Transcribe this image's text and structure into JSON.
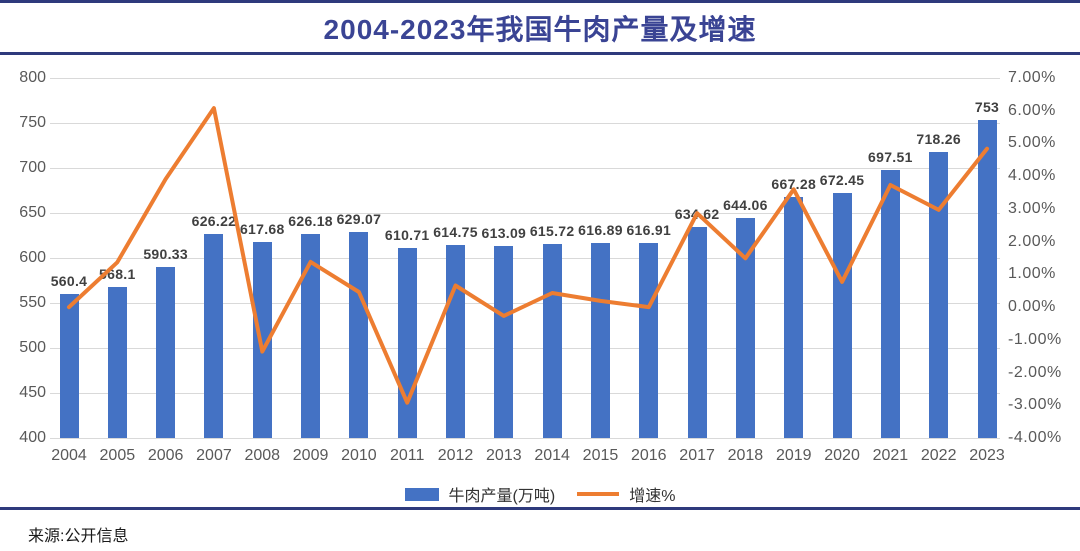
{
  "page": {
    "title": "2004-2023年我国牛肉产量及增速",
    "source": "来源:公开信息",
    "accent_navy": "#2e3a7c",
    "background": "#ffffff"
  },
  "chart_data": {
    "type": "bar",
    "subtype": "bar+line combo, dual axis",
    "title": "2004-2023年我国牛肉产量及增速",
    "categories": [
      "2004",
      "2005",
      "2006",
      "2007",
      "2008",
      "2009",
      "2010",
      "2011",
      "2012",
      "2013",
      "2014",
      "2015",
      "2016",
      "2017",
      "2018",
      "2019",
      "2020",
      "2021",
      "2022",
      "2023"
    ],
    "series": [
      {
        "name": "牛肉产量(万吨)",
        "type": "bar",
        "axis": "left",
        "color": "#4472c4",
        "values": [
          560.4,
          568.1,
          590.33,
          626.22,
          617.68,
          626.18,
          629.07,
          610.71,
          614.75,
          613.09,
          615.72,
          616.89,
          616.91,
          634.62,
          644.06,
          667.28,
          672.45,
          697.51,
          718.26,
          753
        ],
        "labels": [
          "560.4",
          "568.1",
          "590.33",
          "626.22",
          "617.68",
          "626.18",
          "629.07",
          "610.71",
          "614.75",
          "613.09",
          "615.72",
          "616.89",
          "616.91",
          "634.62",
          "644.06",
          "667.28",
          "672.45",
          "697.51",
          "718.26",
          "753"
        ]
      },
      {
        "name": "增速%",
        "type": "line",
        "axis": "right",
        "color": "#ed7d31",
        "values": [
          0.0,
          1.37,
          3.91,
          6.08,
          -1.36,
          1.38,
          0.46,
          -2.92,
          0.66,
          -0.27,
          0.43,
          0.19,
          0.0,
          2.87,
          1.49,
          3.6,
          0.77,
          3.73,
          2.97,
          4.84
        ]
      }
    ],
    "left_axis": {
      "min": 400,
      "max": 800,
      "step": 50,
      "ticks": [
        "800",
        "750",
        "700",
        "650",
        "600",
        "550",
        "500",
        "450",
        "400"
      ]
    },
    "right_axis": {
      "min": -4,
      "max": 7,
      "step": 1,
      "ticks": [
        "7.00%",
        "6.00%",
        "5.00%",
        "4.00%",
        "3.00%",
        "2.00%",
        "1.00%",
        "0.00%",
        "-1.00%",
        "-2.00%",
        "-3.00%",
        "-4.00%"
      ]
    },
    "grid": true,
    "gridline_color": "#d9d9d9",
    "legend_position": "bottom",
    "legend": [
      {
        "label": "牛肉产量(万吨)",
        "color": "#4472c4",
        "marker": "bar"
      },
      {
        "label": "增速%",
        "color": "#ed7d31",
        "marker": "line"
      }
    ]
  }
}
